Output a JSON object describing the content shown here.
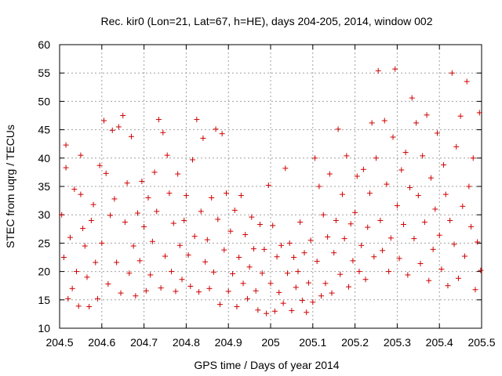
{
  "chart_data": {
    "type": "scatter",
    "title": "Rec. kir0 (Lon=21, Lat=67, h=HE), days 204-205, 2014, window 002",
    "xlabel": "GPS time / Days of year 2014",
    "ylabel": "STEC from uqrg / TECUs",
    "xlim": [
      204.5,
      205.5
    ],
    "ylim": [
      10,
      60
    ],
    "xticks": [
      204.5,
      204.6,
      204.7,
      204.8,
      204.9,
      205,
      205.1,
      205.2,
      205.3,
      205.4,
      205.5
    ],
    "xtick_labels": [
      "204.5",
      "204.6",
      "204.7",
      "204.8",
      "204.9",
      "205",
      "205.1",
      "205.2",
      "205.3",
      "205.4",
      "205.5"
    ],
    "yticks": [
      10,
      15,
      20,
      25,
      30,
      35,
      40,
      45,
      50,
      55,
      60
    ],
    "ytick_labels": [
      "10",
      "15",
      "20",
      "25",
      "30",
      "35",
      "40",
      "45",
      "50",
      "55",
      "60"
    ],
    "grid": true,
    "marker": "plus",
    "color": "#d00000",
    "series": [
      {
        "name": "STEC",
        "points": [
          [
            204.505,
            30.0
          ],
          [
            204.51,
            22.5
          ],
          [
            204.515,
            42.3
          ],
          [
            204.515,
            38.3
          ],
          [
            204.52,
            15.2
          ],
          [
            204.525,
            26.0
          ],
          [
            204.53,
            17.0
          ],
          [
            204.535,
            34.5
          ],
          [
            204.54,
            20.0
          ],
          [
            204.545,
            13.9
          ],
          [
            204.55,
            33.6
          ],
          [
            204.55,
            40.5
          ],
          [
            204.555,
            27.6
          ],
          [
            204.56,
            24.5
          ],
          [
            204.565,
            19.0
          ],
          [
            204.57,
            13.8
          ],
          [
            204.575,
            29.0
          ],
          [
            204.58,
            31.8
          ],
          [
            204.585,
            21.6
          ],
          [
            204.59,
            15.2
          ],
          [
            204.595,
            38.7
          ],
          [
            204.6,
            25.0
          ],
          [
            204.605,
            46.6
          ],
          [
            204.61,
            37.3
          ],
          [
            204.615,
            17.8
          ],
          [
            204.62,
            29.9
          ],
          [
            204.625,
            44.9
          ],
          [
            204.63,
            32.8
          ],
          [
            204.635,
            21.6
          ],
          [
            204.64,
            45.5
          ],
          [
            204.645,
            16.2
          ],
          [
            204.65,
            47.5
          ],
          [
            204.655,
            28.7
          ],
          [
            204.66,
            35.6
          ],
          [
            204.665,
            19.7
          ],
          [
            204.67,
            43.8
          ],
          [
            204.675,
            24.5
          ],
          [
            204.68,
            15.7
          ],
          [
            204.685,
            30.3
          ],
          [
            204.69,
            21.9
          ],
          [
            204.695,
            35.9
          ],
          [
            204.7,
            27.9
          ],
          [
            204.705,
            16.6
          ],
          [
            204.71,
            33.0
          ],
          [
            204.715,
            19.4
          ],
          [
            204.72,
            25.3
          ],
          [
            204.725,
            37.5
          ],
          [
            204.73,
            30.6
          ],
          [
            204.735,
            46.8
          ],
          [
            204.74,
            17.1
          ],
          [
            204.745,
            44.5
          ],
          [
            204.75,
            22.7
          ],
          [
            204.755,
            40.5
          ],
          [
            204.76,
            33.8
          ],
          [
            204.765,
            20.0
          ],
          [
            204.77,
            28.5
          ],
          [
            204.775,
            16.5
          ],
          [
            204.78,
            37.2
          ],
          [
            204.785,
            24.6
          ],
          [
            204.79,
            18.6
          ],
          [
            204.795,
            29.0
          ],
          [
            204.8,
            33.4
          ],
          [
            204.805,
            22.9
          ],
          [
            204.81,
            17.4
          ],
          [
            204.815,
            39.7
          ],
          [
            204.82,
            26.2
          ],
          [
            204.825,
            46.8
          ],
          [
            204.83,
            16.4
          ],
          [
            204.835,
            30.6
          ],
          [
            204.84,
            43.5
          ],
          [
            204.845,
            21.7
          ],
          [
            204.85,
            25.6
          ],
          [
            204.855,
            17.0
          ],
          [
            204.86,
            33.0
          ],
          [
            204.865,
            19.9
          ],
          [
            204.87,
            45.1
          ],
          [
            204.875,
            29.2
          ],
          [
            204.88,
            14.2
          ],
          [
            204.885,
            44.3
          ],
          [
            204.89,
            23.8
          ],
          [
            204.895,
            33.8
          ],
          [
            204.9,
            16.5
          ],
          [
            204.905,
            27.1
          ],
          [
            204.91,
            19.6
          ],
          [
            204.915,
            30.8
          ],
          [
            204.92,
            13.8
          ],
          [
            204.925,
            22.5
          ],
          [
            204.93,
            33.4
          ],
          [
            204.935,
            17.9
          ],
          [
            204.94,
            26.5
          ],
          [
            204.945,
            15.2
          ],
          [
            204.95,
            20.8
          ],
          [
            204.955,
            29.6
          ],
          [
            204.96,
            24.0
          ],
          [
            204.965,
            16.6
          ],
          [
            204.97,
            13.2
          ],
          [
            204.975,
            28.3
          ],
          [
            204.98,
            19.7
          ],
          [
            204.985,
            23.9
          ],
          [
            204.99,
            12.6
          ],
          [
            204.995,
            35.2
          ],
          [
            205.0,
            17.9
          ],
          [
            205.005,
            28.1
          ],
          [
            205.01,
            13.0
          ],
          [
            205.015,
            22.6
          ],
          [
            205.02,
            16.3
          ],
          [
            205.025,
            24.6
          ],
          [
            205.03,
            14.4
          ],
          [
            205.035,
            38.2
          ],
          [
            205.04,
            19.7
          ],
          [
            205.045,
            25.0
          ],
          [
            205.05,
            13.1
          ],
          [
            205.055,
            22.5
          ],
          [
            205.06,
            17.2
          ],
          [
            205.065,
            20.0
          ],
          [
            205.07,
            28.7
          ],
          [
            205.075,
            14.9
          ],
          [
            205.08,
            23.3
          ],
          [
            205.085,
            12.8
          ],
          [
            205.09,
            18.0
          ],
          [
            205.095,
            25.5
          ],
          [
            205.1,
            14.6
          ],
          [
            205.105,
            40.0
          ],
          [
            205.11,
            21.8
          ],
          [
            205.115,
            35.0
          ],
          [
            205.12,
            15.7
          ],
          [
            205.125,
            30.0
          ],
          [
            205.13,
            17.9
          ],
          [
            205.135,
            26.1
          ],
          [
            205.14,
            37.2
          ],
          [
            205.145,
            16.2
          ],
          [
            205.15,
            23.3
          ],
          [
            205.155,
            29.0
          ],
          [
            205.16,
            45.1
          ],
          [
            205.165,
            19.5
          ],
          [
            205.17,
            33.6
          ],
          [
            205.175,
            25.8
          ],
          [
            205.18,
            40.4
          ],
          [
            205.185,
            17.3
          ],
          [
            205.19,
            28.4
          ],
          [
            205.195,
            21.9
          ],
          [
            205.2,
            30.4
          ],
          [
            205.205,
            36.8
          ],
          [
            205.21,
            20.0
          ],
          [
            205.215,
            24.6
          ],
          [
            205.22,
            38.0
          ],
          [
            205.225,
            18.6
          ],
          [
            205.23,
            27.8
          ],
          [
            205.235,
            33.8
          ],
          [
            205.24,
            46.2
          ],
          [
            205.245,
            22.6
          ],
          [
            205.25,
            40.0
          ],
          [
            205.255,
            55.4
          ],
          [
            205.26,
            29.0
          ],
          [
            205.265,
            23.7
          ],
          [
            205.27,
            46.6
          ],
          [
            205.275,
            35.4
          ],
          [
            205.28,
            20.0
          ],
          [
            205.285,
            25.9
          ],
          [
            205.29,
            43.7
          ],
          [
            205.295,
            55.7
          ],
          [
            205.3,
            31.6
          ],
          [
            205.305,
            22.3
          ],
          [
            205.31,
            37.9
          ],
          [
            205.315,
            28.3
          ],
          [
            205.32,
            41.0
          ],
          [
            205.325,
            19.4
          ],
          [
            205.33,
            34.8
          ],
          [
            205.335,
            50.6
          ],
          [
            205.34,
            25.8
          ],
          [
            205.345,
            46.2
          ],
          [
            205.35,
            33.4
          ],
          [
            205.355,
            21.4
          ],
          [
            205.36,
            40.4
          ],
          [
            205.365,
            28.7
          ],
          [
            205.37,
            47.6
          ],
          [
            205.375,
            18.4
          ],
          [
            205.38,
            36.5
          ],
          [
            205.385,
            23.9
          ],
          [
            205.39,
            31.0
          ],
          [
            205.395,
            44.4
          ],
          [
            205.4,
            26.4
          ],
          [
            205.405,
            20.4
          ],
          [
            205.41,
            38.8
          ],
          [
            205.415,
            33.6
          ],
          [
            205.42,
            17.5
          ],
          [
            205.425,
            29.0
          ],
          [
            205.43,
            55.0
          ],
          [
            205.435,
            24.8
          ],
          [
            205.44,
            42.0
          ],
          [
            205.445,
            18.8
          ],
          [
            205.45,
            47.4
          ],
          [
            205.455,
            31.5
          ],
          [
            205.46,
            22.7
          ],
          [
            205.465,
            53.5
          ],
          [
            205.47,
            35.0
          ],
          [
            205.475,
            27.9
          ],
          [
            205.48,
            40.0
          ],
          [
            205.485,
            16.8
          ],
          [
            205.49,
            25.2
          ],
          [
            205.495,
            48.0
          ],
          [
            205.498,
            20.2
          ]
        ]
      }
    ]
  }
}
